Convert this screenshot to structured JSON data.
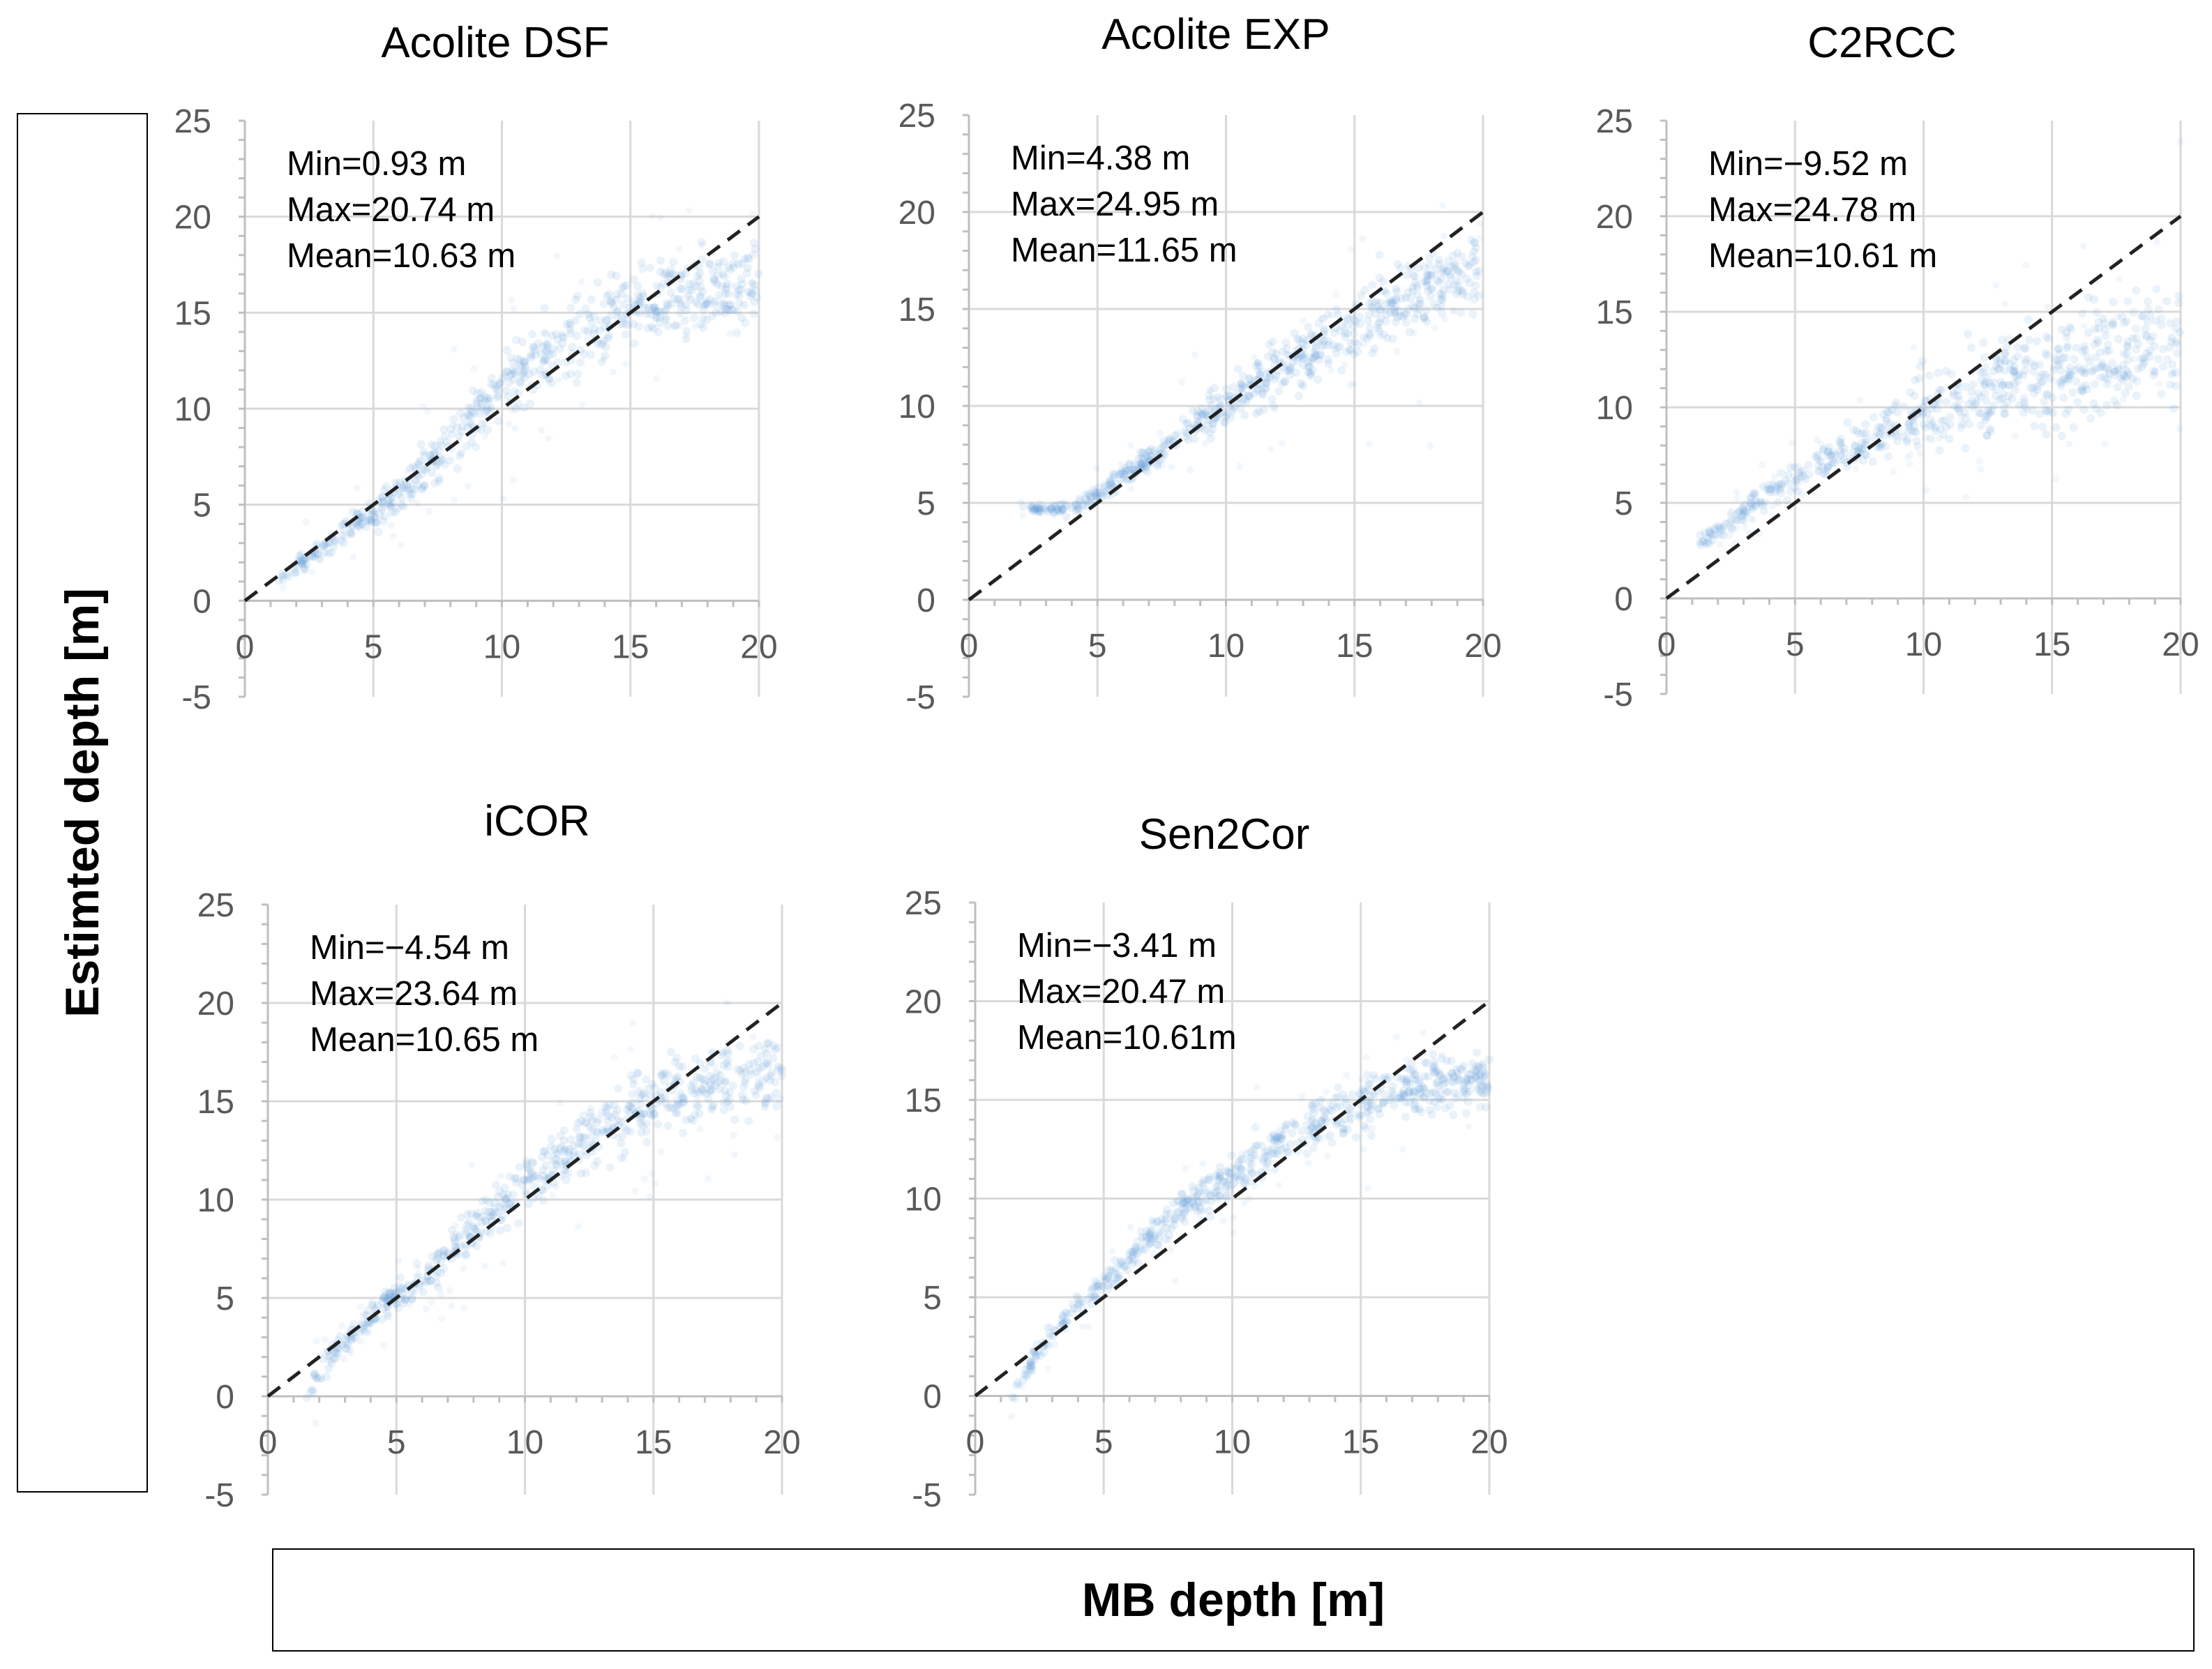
{
  "figure": {
    "ylabel": "Estimted depth [m]",
    "xlabel": "MB depth [m]",
    "colors": {
      "points": "#5b9bd5",
      "reference_line": "#222222",
      "grid": "#d9d9d9",
      "axis": "#bfbfbf",
      "tick_text": "#595959"
    }
  },
  "chart_data": [
    {
      "type": "scatter",
      "title": "Acolite DSF",
      "xlim": [
        0,
        20
      ],
      "ylim": [
        -5,
        25
      ],
      "xticks": [
        "0",
        "5",
        "10",
        "15",
        "20"
      ],
      "yticks": [
        "-5",
        "0",
        "5",
        "10",
        "15",
        "20",
        "25"
      ],
      "stats": [
        "Min=0.93 m",
        "Max=20.74 m",
        "Mean=10.63 m"
      ],
      "reference_line": [
        [
          0,
          0
        ],
        [
          20,
          20
        ]
      ],
      "trend": [
        [
          1.3,
          1.2
        ],
        [
          2,
          1.8
        ],
        [
          3,
          2.8
        ],
        [
          4,
          3.8
        ],
        [
          5,
          4.6
        ],
        [
          6,
          5.6
        ],
        [
          7,
          6.8
        ],
        [
          8,
          8.2
        ],
        [
          9,
          9.6
        ],
        [
          10,
          10.8
        ],
        [
          11,
          12
        ],
        [
          12,
          13
        ],
        [
          13,
          13.8
        ],
        [
          14,
          14.6
        ],
        [
          15,
          15.2
        ],
        [
          16,
          15.6
        ],
        [
          17,
          16
        ],
        [
          18,
          16.2
        ],
        [
          19,
          16.3
        ],
        [
          20,
          16.4
        ]
      ],
      "spread": [
        [
          1.3,
          0.4
        ],
        [
          3,
          0.6
        ],
        [
          5,
          1.0
        ],
        [
          8,
          1.8
        ],
        [
          10,
          2.2
        ],
        [
          14,
          2.4
        ],
        [
          20,
          2.4
        ]
      ]
    },
    {
      "type": "scatter",
      "title": "Acolite EXP",
      "xlim": [
        0,
        20
      ],
      "ylim": [
        -5,
        25
      ],
      "xticks": [
        "0",
        "5",
        "10",
        "15",
        "20"
      ],
      "yticks": [
        "-5",
        "0",
        "5",
        "10",
        "15",
        "20",
        "25"
      ],
      "stats": [
        "Min=4.38 m",
        "Max=24.95 m",
        "Mean=11.65 m"
      ],
      "reference_line": [
        [
          0,
          0
        ],
        [
          20,
          20
        ]
      ],
      "trend": [
        [
          2,
          4.8
        ],
        [
          3,
          4.6
        ],
        [
          4,
          4.7
        ],
        [
          5,
          5.4
        ],
        [
          6,
          6.3
        ],
        [
          7,
          7.3
        ],
        [
          8,
          8.3
        ],
        [
          9,
          9.3
        ],
        [
          10,
          10.2
        ],
        [
          11,
          11
        ],
        [
          12,
          11.8
        ],
        [
          13,
          12.6
        ],
        [
          14,
          13.4
        ],
        [
          15,
          14.1
        ],
        [
          16,
          14.8
        ],
        [
          17,
          15.4
        ],
        [
          18,
          16
        ],
        [
          19,
          16.5
        ],
        [
          20,
          17
        ]
      ],
      "spread": [
        [
          2,
          0.2
        ],
        [
          4,
          0.4
        ],
        [
          6,
          0.6
        ],
        [
          8,
          1.0
        ],
        [
          11,
          1.6
        ],
        [
          15,
          2.2
        ],
        [
          20,
          3.0
        ]
      ]
    },
    {
      "type": "scatter",
      "title": "C2RCC",
      "xlim": [
        0,
        20
      ],
      "ylim": [
        -5,
        25
      ],
      "xticks": [
        "0",
        "5",
        "10",
        "15",
        "20"
      ],
      "yticks": [
        "-5",
        "0",
        "5",
        "10",
        "15",
        "20",
        "25"
      ],
      "stats": [
        "Min=−9.52 m",
        "Max=24.78 m",
        "Mean=10.61 m"
      ],
      "reference_line": [
        [
          0,
          0
        ],
        [
          20,
          20
        ]
      ],
      "trend": [
        [
          1.3,
          3
        ],
        [
          2,
          3.6
        ],
        [
          3,
          4.5
        ],
        [
          4,
          5.6
        ],
        [
          5,
          6.3
        ],
        [
          6,
          7
        ],
        [
          7,
          7.8
        ],
        [
          8,
          8.5
        ],
        [
          9,
          9.1
        ],
        [
          10,
          9.7
        ],
        [
          11,
          10.2
        ],
        [
          12,
          10.7
        ],
        [
          13,
          11.1
        ],
        [
          14,
          11.5
        ],
        [
          15,
          11.8
        ],
        [
          16,
          12.2
        ],
        [
          17,
          12.5
        ],
        [
          18,
          12.8
        ],
        [
          19,
          13
        ],
        [
          20,
          13.2
        ]
      ],
      "spread": [
        [
          1.3,
          0.4
        ],
        [
          3,
          0.7
        ],
        [
          6,
          1.0
        ],
        [
          9,
          2.0
        ],
        [
          12,
          3.0
        ],
        [
          16,
          3.5
        ],
        [
          20,
          4.0
        ]
      ]
    },
    {
      "type": "scatter",
      "title": "iCOR",
      "xlim": [
        0,
        20
      ],
      "ylim": [
        -5,
        25
      ],
      "xticks": [
        "0",
        "5",
        "10",
        "15",
        "20"
      ],
      "yticks": [
        "-5",
        "0",
        "5",
        "10",
        "15",
        "20",
        "25"
      ],
      "stats": [
        "Min=−4.54 m",
        "Max=23.64 m",
        "Mean=10.65 m"
      ],
      "reference_line": [
        [
          0,
          0
        ],
        [
          20,
          20
        ]
      ],
      "trend": [
        [
          1.5,
          0.3
        ],
        [
          2,
          1.2
        ],
        [
          3,
          2.8
        ],
        [
          4,
          4
        ],
        [
          5,
          5
        ],
        [
          6,
          6
        ],
        [
          7,
          7.2
        ],
        [
          8,
          8.4
        ],
        [
          9,
          9.6
        ],
        [
          10,
          10.8
        ],
        [
          11,
          11.8
        ],
        [
          12,
          12.8
        ],
        [
          13,
          13.6
        ],
        [
          14,
          14.4
        ],
        [
          15,
          15
        ],
        [
          16,
          15.5
        ],
        [
          17,
          15.9
        ],
        [
          18,
          16.2
        ],
        [
          19,
          16.4
        ],
        [
          20,
          16.5
        ]
      ],
      "spread": [
        [
          1.5,
          0.8
        ],
        [
          3,
          0.7
        ],
        [
          5,
          0.9
        ],
        [
          8,
          1.4
        ],
        [
          11,
          1.8
        ],
        [
          15,
          2.2
        ],
        [
          20,
          2.4
        ]
      ]
    },
    {
      "type": "scatter",
      "title": "Sen2Cor",
      "xlim": [
        0,
        20
      ],
      "ylim": [
        -5,
        25
      ],
      "xticks": [
        "0",
        "5",
        "10",
        "15",
        "20"
      ],
      "yticks": [
        "-5",
        "0",
        "5",
        "10",
        "15",
        "20",
        "25"
      ],
      "stats": [
        "Min=−3.41 m",
        "Max=20.47 m",
        "Mean=10.61m"
      ],
      "reference_line": [
        [
          0,
          0
        ],
        [
          20,
          20
        ]
      ],
      "trend": [
        [
          1.4,
          -0.3
        ],
        [
          2,
          1.2
        ],
        [
          3,
          3.2
        ],
        [
          4,
          4.6
        ],
        [
          5,
          5.8
        ],
        [
          6,
          7
        ],
        [
          7,
          8.2
        ],
        [
          8,
          9.4
        ],
        [
          9,
          10.4
        ],
        [
          10,
          11.3
        ],
        [
          11,
          12.1
        ],
        [
          12,
          12.9
        ],
        [
          13,
          13.6
        ],
        [
          14,
          14.2
        ],
        [
          15,
          14.8
        ],
        [
          16,
          15.2
        ],
        [
          17,
          15.5
        ],
        [
          18,
          15.8
        ],
        [
          19,
          15.9
        ],
        [
          20,
          16
        ]
      ],
      "spread": [
        [
          1.4,
          0.6
        ],
        [
          3,
          0.7
        ],
        [
          5,
          0.8
        ],
        [
          8,
          1.1
        ],
        [
          11,
          1.4
        ],
        [
          15,
          1.6
        ],
        [
          20,
          1.8
        ]
      ]
    }
  ]
}
